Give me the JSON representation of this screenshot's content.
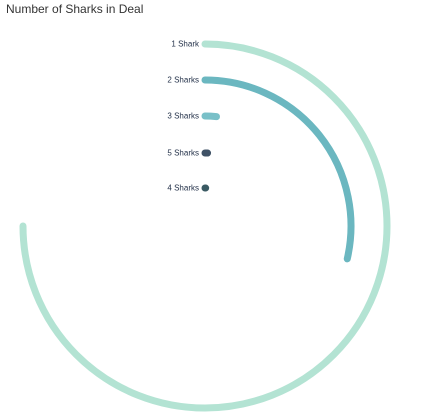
{
  "chart_data": {
    "type": "radial_bar",
    "title": "Number of Sharks in Deal",
    "categories": [
      "1 Shark",
      "2 Sharks",
      "3 Sharks",
      "5 Sharks",
      "4 Sharks"
    ],
    "values": [
      270,
      103,
      6,
      2,
      1
    ],
    "max_angle_value": 360,
    "colors": [
      "#b3e3d3",
      "#6bb7c0",
      "#79c0c8",
      "#3f5266",
      "#3a5a63"
    ]
  }
}
